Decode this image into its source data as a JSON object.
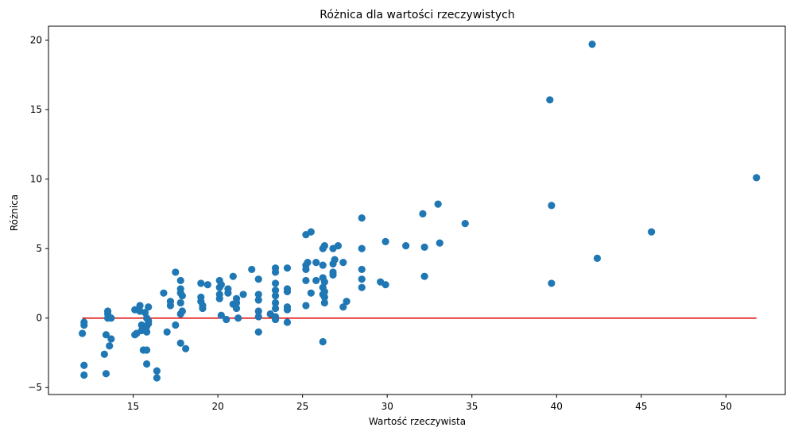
{
  "chart_data": {
    "type": "scatter",
    "title": "Różnica dla wartości rzeczywistych",
    "xlabel": "Wartość rzeczywista",
    "ylabel": "Różnica",
    "xlim": [
      10,
      53.5
    ],
    "ylim": [
      -5.5,
      21
    ],
    "xticks": [
      15,
      20,
      25,
      30,
      35,
      40,
      45,
      50
    ],
    "yticks": [
      -5,
      0,
      5,
      10,
      15,
      20
    ],
    "grid": false,
    "series": [
      {
        "color": "#1f77b4",
        "points": [
          [
            12.0,
            -1.1
          ],
          [
            12.1,
            -0.3
          ],
          [
            12.1,
            -0.5
          ],
          [
            12.1,
            -3.4
          ],
          [
            12.1,
            -4.1
          ],
          [
            13.3,
            -2.6
          ],
          [
            13.4,
            -1.2
          ],
          [
            13.4,
            -4.0
          ],
          [
            13.5,
            0.5
          ],
          [
            13.5,
            0.3
          ],
          [
            13.5,
            0.0
          ],
          [
            13.6,
            -2.0
          ],
          [
            13.7,
            -1.5
          ],
          [
            13.7,
            0.0
          ],
          [
            15.1,
            0.6
          ],
          [
            15.1,
            -1.2
          ],
          [
            15.2,
            -1.1
          ],
          [
            15.4,
            0.9
          ],
          [
            15.4,
            0.5
          ],
          [
            15.5,
            -0.5
          ],
          [
            15.5,
            -0.9
          ],
          [
            15.6,
            -2.3
          ],
          [
            15.7,
            0.4
          ],
          [
            15.8,
            0.0
          ],
          [
            15.8,
            -0.6
          ],
          [
            15.8,
            -1.0
          ],
          [
            15.8,
            -2.3
          ],
          [
            15.8,
            -3.3
          ],
          [
            15.9,
            0.8
          ],
          [
            15.9,
            -0.2
          ],
          [
            15.9,
            -0.4
          ],
          [
            16.4,
            -3.8
          ],
          [
            16.4,
            -4.3
          ],
          [
            16.8,
            1.8
          ],
          [
            17.0,
            -1.0
          ],
          [
            17.2,
            1.2
          ],
          [
            17.2,
            0.9
          ],
          [
            17.5,
            3.3
          ],
          [
            17.5,
            -0.5
          ],
          [
            17.8,
            2.7
          ],
          [
            17.8,
            2.1
          ],
          [
            17.8,
            1.8
          ],
          [
            17.8,
            1.1
          ],
          [
            17.8,
            0.3
          ],
          [
            17.8,
            -1.8
          ],
          [
            17.9,
            1.6
          ],
          [
            17.9,
            0.5
          ],
          [
            18.1,
            -2.2
          ],
          [
            19.0,
            2.5
          ],
          [
            19.0,
            1.5
          ],
          [
            19.0,
            1.2
          ],
          [
            19.1,
            0.9
          ],
          [
            19.1,
            0.7
          ],
          [
            19.4,
            2.4
          ],
          [
            20.1,
            2.7
          ],
          [
            20.1,
            2.2
          ],
          [
            20.1,
            1.7
          ],
          [
            20.1,
            1.4
          ],
          [
            20.2,
            2.4
          ],
          [
            20.2,
            0.2
          ],
          [
            20.5,
            -0.1
          ],
          [
            20.6,
            2.1
          ],
          [
            20.6,
            1.8
          ],
          [
            20.9,
            3.0
          ],
          [
            20.9,
            1.0
          ],
          [
            21.1,
            0.7
          ],
          [
            21.1,
            1.4
          ],
          [
            21.1,
            1.1
          ],
          [
            21.2,
            0.0
          ],
          [
            21.5,
            1.7
          ],
          [
            22.0,
            3.5
          ],
          [
            22.4,
            2.8
          ],
          [
            22.4,
            1.7
          ],
          [
            22.4,
            1.3
          ],
          [
            22.4,
            0.5
          ],
          [
            22.4,
            0.1
          ],
          [
            22.4,
            -1.0
          ],
          [
            23.1,
            0.3
          ],
          [
            23.4,
            3.6
          ],
          [
            23.4,
            3.3
          ],
          [
            23.4,
            2.5
          ],
          [
            23.4,
            2.0
          ],
          [
            23.4,
            1.6
          ],
          [
            23.4,
            1.1
          ],
          [
            23.4,
            0.7
          ],
          [
            23.4,
            0.1
          ],
          [
            23.4,
            -0.1
          ],
          [
            24.1,
            3.6
          ],
          [
            24.1,
            2.1
          ],
          [
            24.1,
            1.9
          ],
          [
            24.1,
            0.8
          ],
          [
            24.1,
            0.6
          ],
          [
            24.1,
            -0.3
          ],
          [
            25.2,
            6.0
          ],
          [
            25.2,
            3.8
          ],
          [
            25.2,
            3.5
          ],
          [
            25.2,
            2.7
          ],
          [
            25.2,
            0.9
          ],
          [
            25.3,
            4.0
          ],
          [
            25.5,
            6.2
          ],
          [
            25.5,
            1.8
          ],
          [
            25.8,
            4.0
          ],
          [
            25.8,
            2.7
          ],
          [
            26.2,
            5.0
          ],
          [
            26.2,
            3.8
          ],
          [
            26.2,
            2.9
          ],
          [
            26.2,
            2.2
          ],
          [
            26.2,
            1.7
          ],
          [
            26.2,
            -1.7
          ],
          [
            26.3,
            5.2
          ],
          [
            26.3,
            2.6
          ],
          [
            26.3,
            1.9
          ],
          [
            26.3,
            1.5
          ],
          [
            26.3,
            1.1
          ],
          [
            26.8,
            5.0
          ],
          [
            26.8,
            3.9
          ],
          [
            26.8,
            3.3
          ],
          [
            26.8,
            3.1
          ],
          [
            26.9,
            4.2
          ],
          [
            27.1,
            5.2
          ],
          [
            27.4,
            4.0
          ],
          [
            27.4,
            0.8
          ],
          [
            27.6,
            1.2
          ],
          [
            28.5,
            7.2
          ],
          [
            28.5,
            5.0
          ],
          [
            28.5,
            3.5
          ],
          [
            28.5,
            2.8
          ],
          [
            28.5,
            2.2
          ],
          [
            29.6,
            2.6
          ],
          [
            29.9,
            5.5
          ],
          [
            29.9,
            2.4
          ],
          [
            31.1,
            5.2
          ],
          [
            32.1,
            7.5
          ],
          [
            32.2,
            5.1
          ],
          [
            32.2,
            3.0
          ],
          [
            33.0,
            8.2
          ],
          [
            33.1,
            5.4
          ],
          [
            34.6,
            6.8
          ],
          [
            39.6,
            15.7
          ],
          [
            39.7,
            8.1
          ],
          [
            39.7,
            2.5
          ],
          [
            42.1,
            19.7
          ],
          [
            42.4,
            4.3
          ],
          [
            45.6,
            6.2
          ],
          [
            51.8,
            10.1
          ]
        ]
      }
    ],
    "reference_line": {
      "x": [
        12.0,
        51.8
      ],
      "y": [
        0,
        0
      ],
      "color": "#e00000"
    }
  }
}
